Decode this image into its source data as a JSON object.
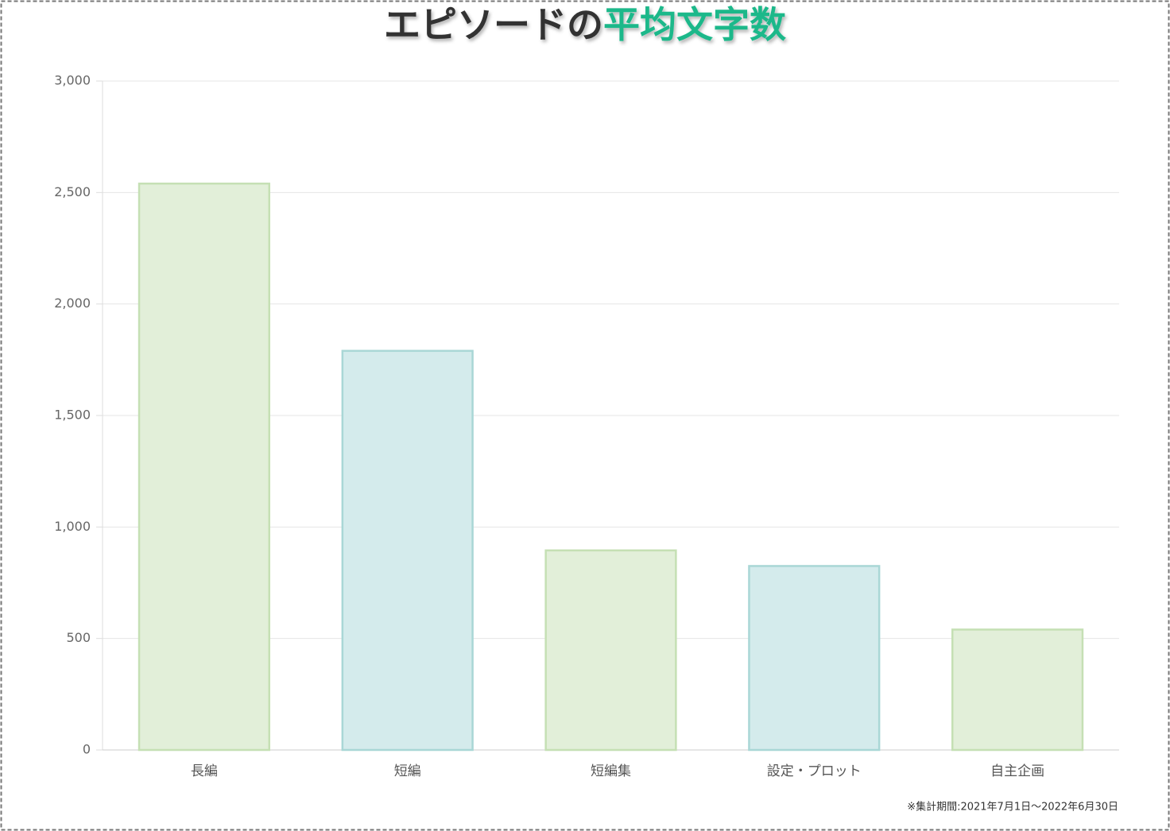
{
  "chart_data": {
    "type": "bar",
    "title": "エピソードの",
    "title_highlight": "平均文字数",
    "categories": [
      "長編",
      "短編",
      "短編集",
      "設定・プロット",
      "自主企画"
    ],
    "values": [
      2540,
      1790,
      895,
      825,
      540
    ],
    "colors": [
      "#e2efd9",
      "#d4ebec",
      "#e2efd9",
      "#d4ebec",
      "#e2efd9"
    ],
    "border_colors": [
      "#c5e0b4",
      "#a9d7d6",
      "#c5e0b4",
      "#a9d7d6",
      "#c5e0b4"
    ],
    "ylim": [
      0,
      3000
    ],
    "yticks": [
      0,
      500,
      {
        "value": 1000,
        "label": "1,000"
      },
      {
        "value": 1500,
        "label": "1,500"
      },
      {
        "value": 2000,
        "label": "2,000"
      },
      {
        "value": 2500,
        "label": "2,500"
      },
      {
        "value": 3000,
        "label": "3,000"
      }
    ],
    "grid": true,
    "note": "※集計期間:2021年7月1日～2022年6月30日"
  }
}
